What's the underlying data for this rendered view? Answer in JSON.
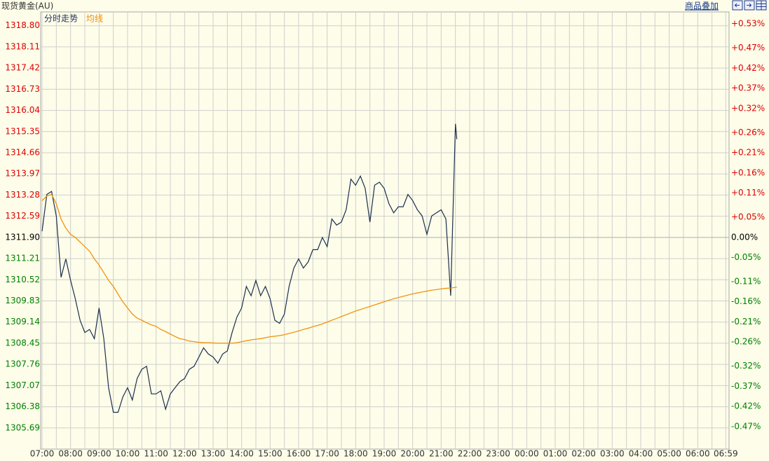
{
  "header": {
    "instrument": "现货黄金(AU)",
    "overlay_button": "商品叠加"
  },
  "chart_data": {
    "type": "line",
    "legend": [
      "分时走势",
      "均线"
    ],
    "x": [
      "07:00",
      "07:10",
      "07:20",
      "07:30",
      "07:40",
      "07:50",
      "08:00",
      "08:10",
      "08:20",
      "08:30",
      "08:40",
      "08:50",
      "09:00",
      "09:10",
      "09:20",
      "09:30",
      "09:40",
      "09:50",
      "10:00",
      "10:10",
      "10:20",
      "10:30",
      "10:40",
      "10:50",
      "11:00",
      "11:10",
      "11:20",
      "11:30",
      "11:40",
      "11:50",
      "12:00",
      "12:10",
      "12:20",
      "12:30",
      "12:40",
      "12:50",
      "13:00",
      "13:10",
      "13:20",
      "13:30",
      "13:40",
      "13:50",
      "14:00",
      "14:10",
      "14:20",
      "14:30",
      "14:40",
      "14:50",
      "15:00",
      "15:10",
      "15:20",
      "15:30",
      "15:40",
      "15:50",
      "16:00",
      "16:10",
      "16:20",
      "16:30",
      "16:40",
      "16:50",
      "17:00",
      "17:10",
      "17:20",
      "17:30",
      "17:40",
      "17:50",
      "18:00",
      "18:10",
      "18:20",
      "18:30",
      "18:40",
      "18:50",
      "19:00",
      "19:10",
      "19:20",
      "19:30",
      "19:40",
      "19:50",
      "20:00",
      "20:10",
      "20:20",
      "20:30",
      "20:40",
      "20:50",
      "21:00",
      "21:10",
      "21:20",
      "21:30",
      "21:33"
    ],
    "series": [
      {
        "name": "分时走势",
        "color": "#1c2f4f",
        "values": [
          1312.1,
          1313.3,
          1313.4,
          1312.6,
          1310.6,
          1311.2,
          1310.5,
          1309.9,
          1309.2,
          1308.8,
          1308.9,
          1308.6,
          1309.6,
          1308.6,
          1307.0,
          1306.2,
          1306.2,
          1306.7,
          1307.0,
          1306.6,
          1307.3,
          1307.6,
          1307.7,
          1306.8,
          1306.8,
          1306.9,
          1306.3,
          1306.8,
          1307.0,
          1307.2,
          1307.3,
          1307.6,
          1307.7,
          1308.0,
          1308.3,
          1308.1,
          1308.0,
          1307.8,
          1308.1,
          1308.2,
          1308.8,
          1309.3,
          1309.6,
          1310.3,
          1310.0,
          1310.5,
          1310.0,
          1310.3,
          1309.9,
          1309.2,
          1309.1,
          1309.4,
          1310.3,
          1310.9,
          1311.2,
          1310.9,
          1311.1,
          1311.5,
          1311.5,
          1311.9,
          1311.6,
          1312.5,
          1312.3,
          1312.4,
          1312.8,
          1313.8,
          1313.6,
          1313.9,
          1313.5,
          1312.4,
          1313.6,
          1313.7,
          1313.5,
          1313.0,
          1312.7,
          1312.9,
          1312.9,
          1313.3,
          1313.1,
          1312.8,
          1312.6,
          1312.0,
          1312.6,
          1312.7,
          1312.8,
          1312.5,
          1310.0,
          1315.6,
          1315.1
        ]
      },
      {
        "name": "均线",
        "color": "#f08c00",
        "values": [
          1313.1,
          1313.25,
          1313.3,
          1313.0,
          1312.5,
          1312.2,
          1312.0,
          1311.9,
          1311.75,
          1311.6,
          1311.45,
          1311.2,
          1311.0,
          1310.75,
          1310.5,
          1310.3,
          1310.05,
          1309.8,
          1309.6,
          1309.4,
          1309.27,
          1309.2,
          1309.12,
          1309.05,
          1309.0,
          1308.9,
          1308.83,
          1308.75,
          1308.67,
          1308.6,
          1308.57,
          1308.52,
          1308.5,
          1308.48,
          1308.47,
          1308.47,
          1308.46,
          1308.45,
          1308.45,
          1308.45,
          1308.45,
          1308.47,
          1308.5,
          1308.53,
          1308.56,
          1308.58,
          1308.6,
          1308.63,
          1308.66,
          1308.68,
          1308.7,
          1308.73,
          1308.77,
          1308.81,
          1308.85,
          1308.9,
          1308.94,
          1308.99,
          1309.03,
          1309.08,
          1309.14,
          1309.2,
          1309.26,
          1309.32,
          1309.38,
          1309.44,
          1309.5,
          1309.55,
          1309.6,
          1309.65,
          1309.7,
          1309.75,
          1309.8,
          1309.85,
          1309.9,
          1309.94,
          1309.98,
          1310.02,
          1310.06,
          1310.09,
          1310.12,
          1310.15,
          1310.18,
          1310.2,
          1310.22,
          1310.24,
          1310.25,
          1310.27,
          1310.28
        ]
      }
    ],
    "xticks": [
      "07:00",
      "08:00",
      "09:00",
      "10:00",
      "11:00",
      "12:00",
      "13:00",
      "14:00",
      "15:00",
      "16:00",
      "17:00",
      "18:00",
      "19:00",
      "20:00",
      "21:00",
      "22:00",
      "23:00",
      "00:00",
      "01:00",
      "02:00",
      "03:00",
      "04:00",
      "05:00",
      "06:00",
      "06:59"
    ],
    "ylim": [
      1305.0,
      1319.25
    ],
    "yticks": [
      {
        "value": 1318.8,
        "label": "1318.80"
      },
      1318.11,
      1317.42,
      1316.73,
      1316.04,
      1315.35,
      1314.66,
      1313.97,
      1313.28,
      1312.59,
      {
        "value": 1311.9,
        "label": "1311.90"
      },
      1311.21,
      1310.52,
      1309.83,
      1309.14,
      1308.45,
      1307.76,
      1307.07,
      1306.38,
      1305.69
    ],
    "y2lim": [
      -0.526,
      0.56
    ],
    "y2ticks": [
      {
        "value": 0.53,
        "label": "+0.53%"
      },
      {
        "value": 0.47,
        "label": "+0.47%"
      },
      {
        "value": 0.42,
        "label": "+0.42%"
      },
      {
        "value": 0.37,
        "label": "+0.37%"
      },
      {
        "value": 0.32,
        "label": "+0.32%"
      },
      {
        "value": 0.26,
        "label": "+0.26%"
      },
      {
        "value": 0.21,
        "label": "+0.21%"
      },
      {
        "value": 0.16,
        "label": "+0.16%"
      },
      {
        "value": 0.11,
        "label": "+0.11%"
      },
      {
        "value": 0.05,
        "label": "+0.05%"
      },
      {
        "value": 0,
        "label": "0.00%"
      },
      {
        "value": -0.05,
        "label": "-0.05%"
      },
      {
        "value": -0.11,
        "label": "-0.11%"
      },
      {
        "value": -0.16,
        "label": "-0.16%"
      },
      {
        "value": -0.21,
        "label": "-0.21%"
      },
      {
        "value": -0.26,
        "label": "-0.26%"
      },
      {
        "value": -0.32,
        "label": "-0.32%"
      },
      {
        "value": -0.37,
        "label": "-0.37%"
      },
      {
        "value": -0.42,
        "label": "-0.42%"
      },
      {
        "value": -0.47,
        "label": "-0.47%"
      }
    ],
    "tick_colors": {
      "up": "#dd0000",
      "flat": "#000000",
      "down": "#008000"
    },
    "grid": true
  }
}
